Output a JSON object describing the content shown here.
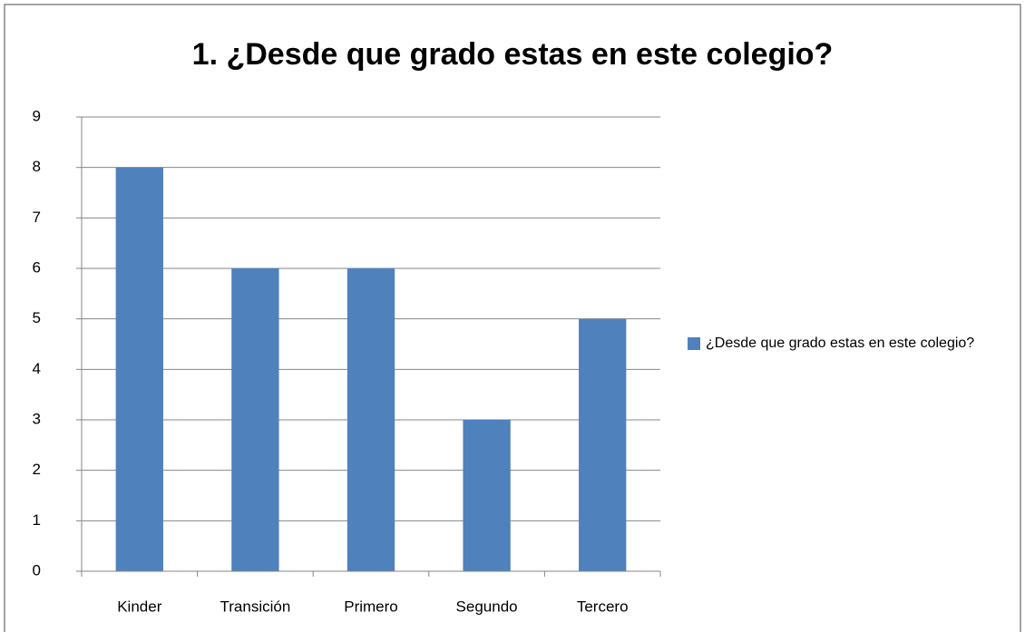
{
  "chart_data": {
    "type": "bar",
    "title": "1. ¿Desde que grado estas en este colegio?",
    "categories": [
      "Kinder",
      "Transición",
      "Primero",
      "Segundo",
      "Tercero"
    ],
    "series": [
      {
        "name": "¿Desde que grado estas en este colegio?",
        "color": "#4f81bd",
        "values": [
          8,
          6,
          6,
          3,
          5
        ]
      }
    ],
    "ylim": [
      0,
      9
    ],
    "yticks": [
      0,
      1,
      2,
      3,
      4,
      5,
      6,
      7,
      8,
      9
    ],
    "grid": true,
    "legend": "right"
  }
}
